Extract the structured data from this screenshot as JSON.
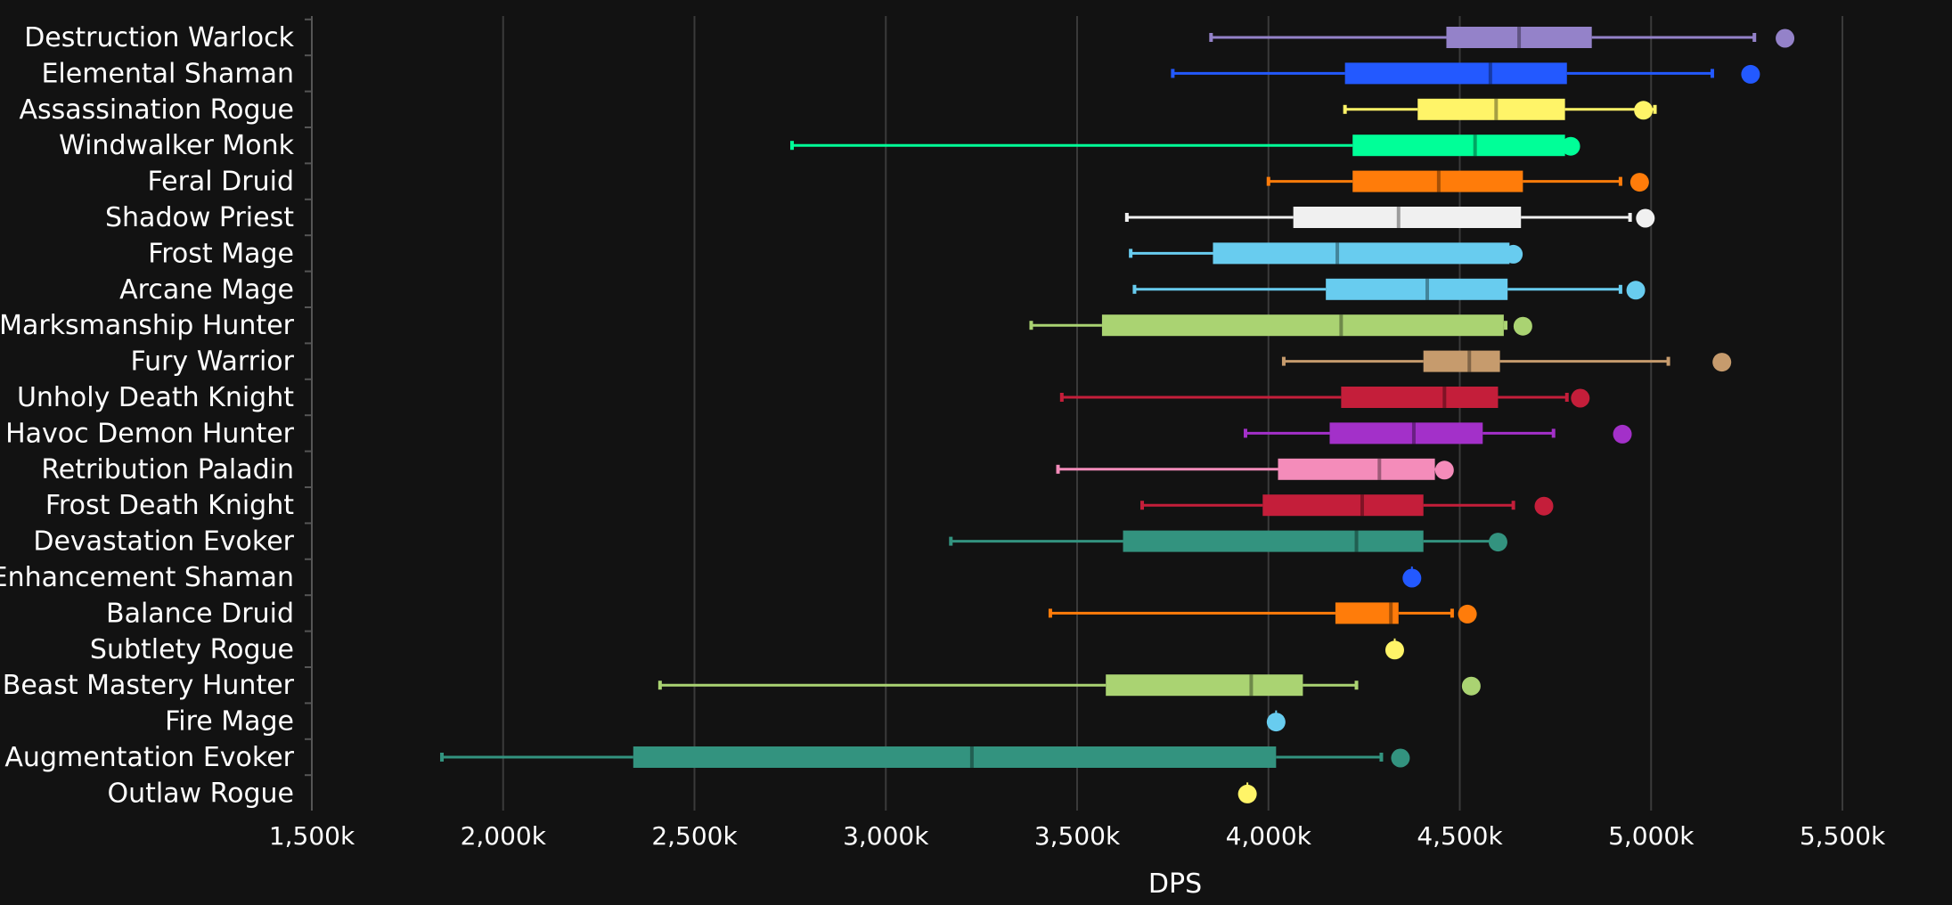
{
  "chart_data": {
    "type": "boxplot",
    "title": "",
    "xlabel": "DPS",
    "ylabel": "",
    "xlim": [
      1500,
      5500
    ],
    "xticks": [
      1500,
      2000,
      2500,
      3000,
      3500,
      4000,
      4500,
      5000,
      5500
    ],
    "xtick_labels": [
      "1,500k",
      "2,000k",
      "2,500k",
      "3,000k",
      "3,500k",
      "4,000k",
      "4,500k",
      "5,000k",
      "5,500k"
    ],
    "grid": true,
    "series": [
      {
        "name": "Destruction Warlock",
        "color": "#9482C9",
        "min": 3850,
        "q1": 4465,
        "median": 4655,
        "q3": 4845,
        "max": 5270,
        "outlier": 5350
      },
      {
        "name": "Elemental Shaman",
        "color": "#2359FF",
        "min": 3750,
        "q1": 4200,
        "median": 4580,
        "q3": 4780,
        "max": 5160,
        "outlier": 5260
      },
      {
        "name": "Assassination Rogue",
        "color": "#FFF468",
        "min": 4200,
        "q1": 4390,
        "median": 4595,
        "q3": 4775,
        "max": 5010,
        "outlier": 4980
      },
      {
        "name": "Windwalker Monk",
        "color": "#00FF98",
        "min": 2755,
        "q1": 4220,
        "median": 4540,
        "q3": 4775,
        "max": 4790,
        "outlier": 4790
      },
      {
        "name": "Feral Druid",
        "color": "#FF7C0A",
        "min": 4000,
        "q1": 4220,
        "median": 4445,
        "q3": 4665,
        "max": 4920,
        "outlier": 4970
      },
      {
        "name": "Shadow Priest",
        "color": "#F0F0F0",
        "min": 3630,
        "q1": 4065,
        "median": 4340,
        "q3": 4660,
        "max": 4945,
        "outlier": 4985
      },
      {
        "name": "Frost Mage",
        "color": "#68CCEF",
        "min": 3640,
        "q1": 3855,
        "median": 4180,
        "q3": 4630,
        "max": 4640,
        "outlier": 4640
      },
      {
        "name": "Arcane Mage",
        "color": "#68CCEF",
        "min": 3650,
        "q1": 4150,
        "median": 4415,
        "q3": 4625,
        "max": 4920,
        "outlier": 4960
      },
      {
        "name": "Marksmanship Hunter",
        "color": "#AAD372",
        "min": 3380,
        "q1": 3565,
        "median": 4190,
        "q3": 4615,
        "max": 4620,
        "outlier": 4665
      },
      {
        "name": "Fury Warrior",
        "color": "#C69B6D",
        "min": 4040,
        "q1": 4405,
        "median": 4525,
        "q3": 4605,
        "max": 5045,
        "outlier": 5185
      },
      {
        "name": "Unholy Death Knight",
        "color": "#C41E3A",
        "min": 3460,
        "q1": 4190,
        "median": 4460,
        "q3": 4600,
        "max": 4780,
        "outlier": 4815
      },
      {
        "name": "Havoc Demon Hunter",
        "color": "#A330C9",
        "min": 3940,
        "q1": 4160,
        "median": 4380,
        "q3": 4560,
        "max": 4745,
        "outlier": 4925
      },
      {
        "name": "Retribution Paladin",
        "color": "#F48CBA",
        "min": 3450,
        "q1": 4025,
        "median": 4290,
        "q3": 4435,
        "max": 4460,
        "outlier": 4460
      },
      {
        "name": "Frost Death Knight",
        "color": "#C41E3A",
        "min": 3670,
        "q1": 3985,
        "median": 4245,
        "q3": 4405,
        "max": 4640,
        "outlier": 4720
      },
      {
        "name": "Devastation Evoker",
        "color": "#33937F",
        "min": 3170,
        "q1": 3620,
        "median": 4230,
        "q3": 4405,
        "max": 4600,
        "outlier": 4600
      },
      {
        "name": "Enhancement Shaman",
        "color": "#2359FF",
        "min": 4375,
        "q1": 4375,
        "median": 4375,
        "q3": 4375,
        "max": 4375,
        "outlier": 4375
      },
      {
        "name": "Balance Druid",
        "color": "#FF7C0A",
        "min": 3430,
        "q1": 4175,
        "median": 4320,
        "q3": 4340,
        "max": 4480,
        "outlier": 4520
      },
      {
        "name": "Subtlety Rogue",
        "color": "#FFF468",
        "min": 4330,
        "q1": 4330,
        "median": 4330,
        "q3": 4330,
        "max": 4330,
        "outlier": 4330
      },
      {
        "name": "Beast Mastery Hunter",
        "color": "#AAD372",
        "min": 2410,
        "q1": 3575,
        "median": 3955,
        "q3": 4090,
        "max": 4230,
        "outlier": 4530
      },
      {
        "name": "Fire Mage",
        "color": "#68CCEF",
        "min": 4020,
        "q1": 4020,
        "median": 4020,
        "q3": 4020,
        "max": 4020,
        "outlier": 4020
      },
      {
        "name": "Augmentation Evoker",
        "color": "#33937F",
        "min": 1840,
        "q1": 2340,
        "median": 3225,
        "q3": 4020,
        "max": 4295,
        "outlier": 4345
      },
      {
        "name": "Outlaw Rogue",
        "color": "#FFF468",
        "min": 3945,
        "q1": 3945,
        "median": 3945,
        "q3": 3945,
        "max": 3945,
        "outlier": 3945
      }
    ]
  }
}
